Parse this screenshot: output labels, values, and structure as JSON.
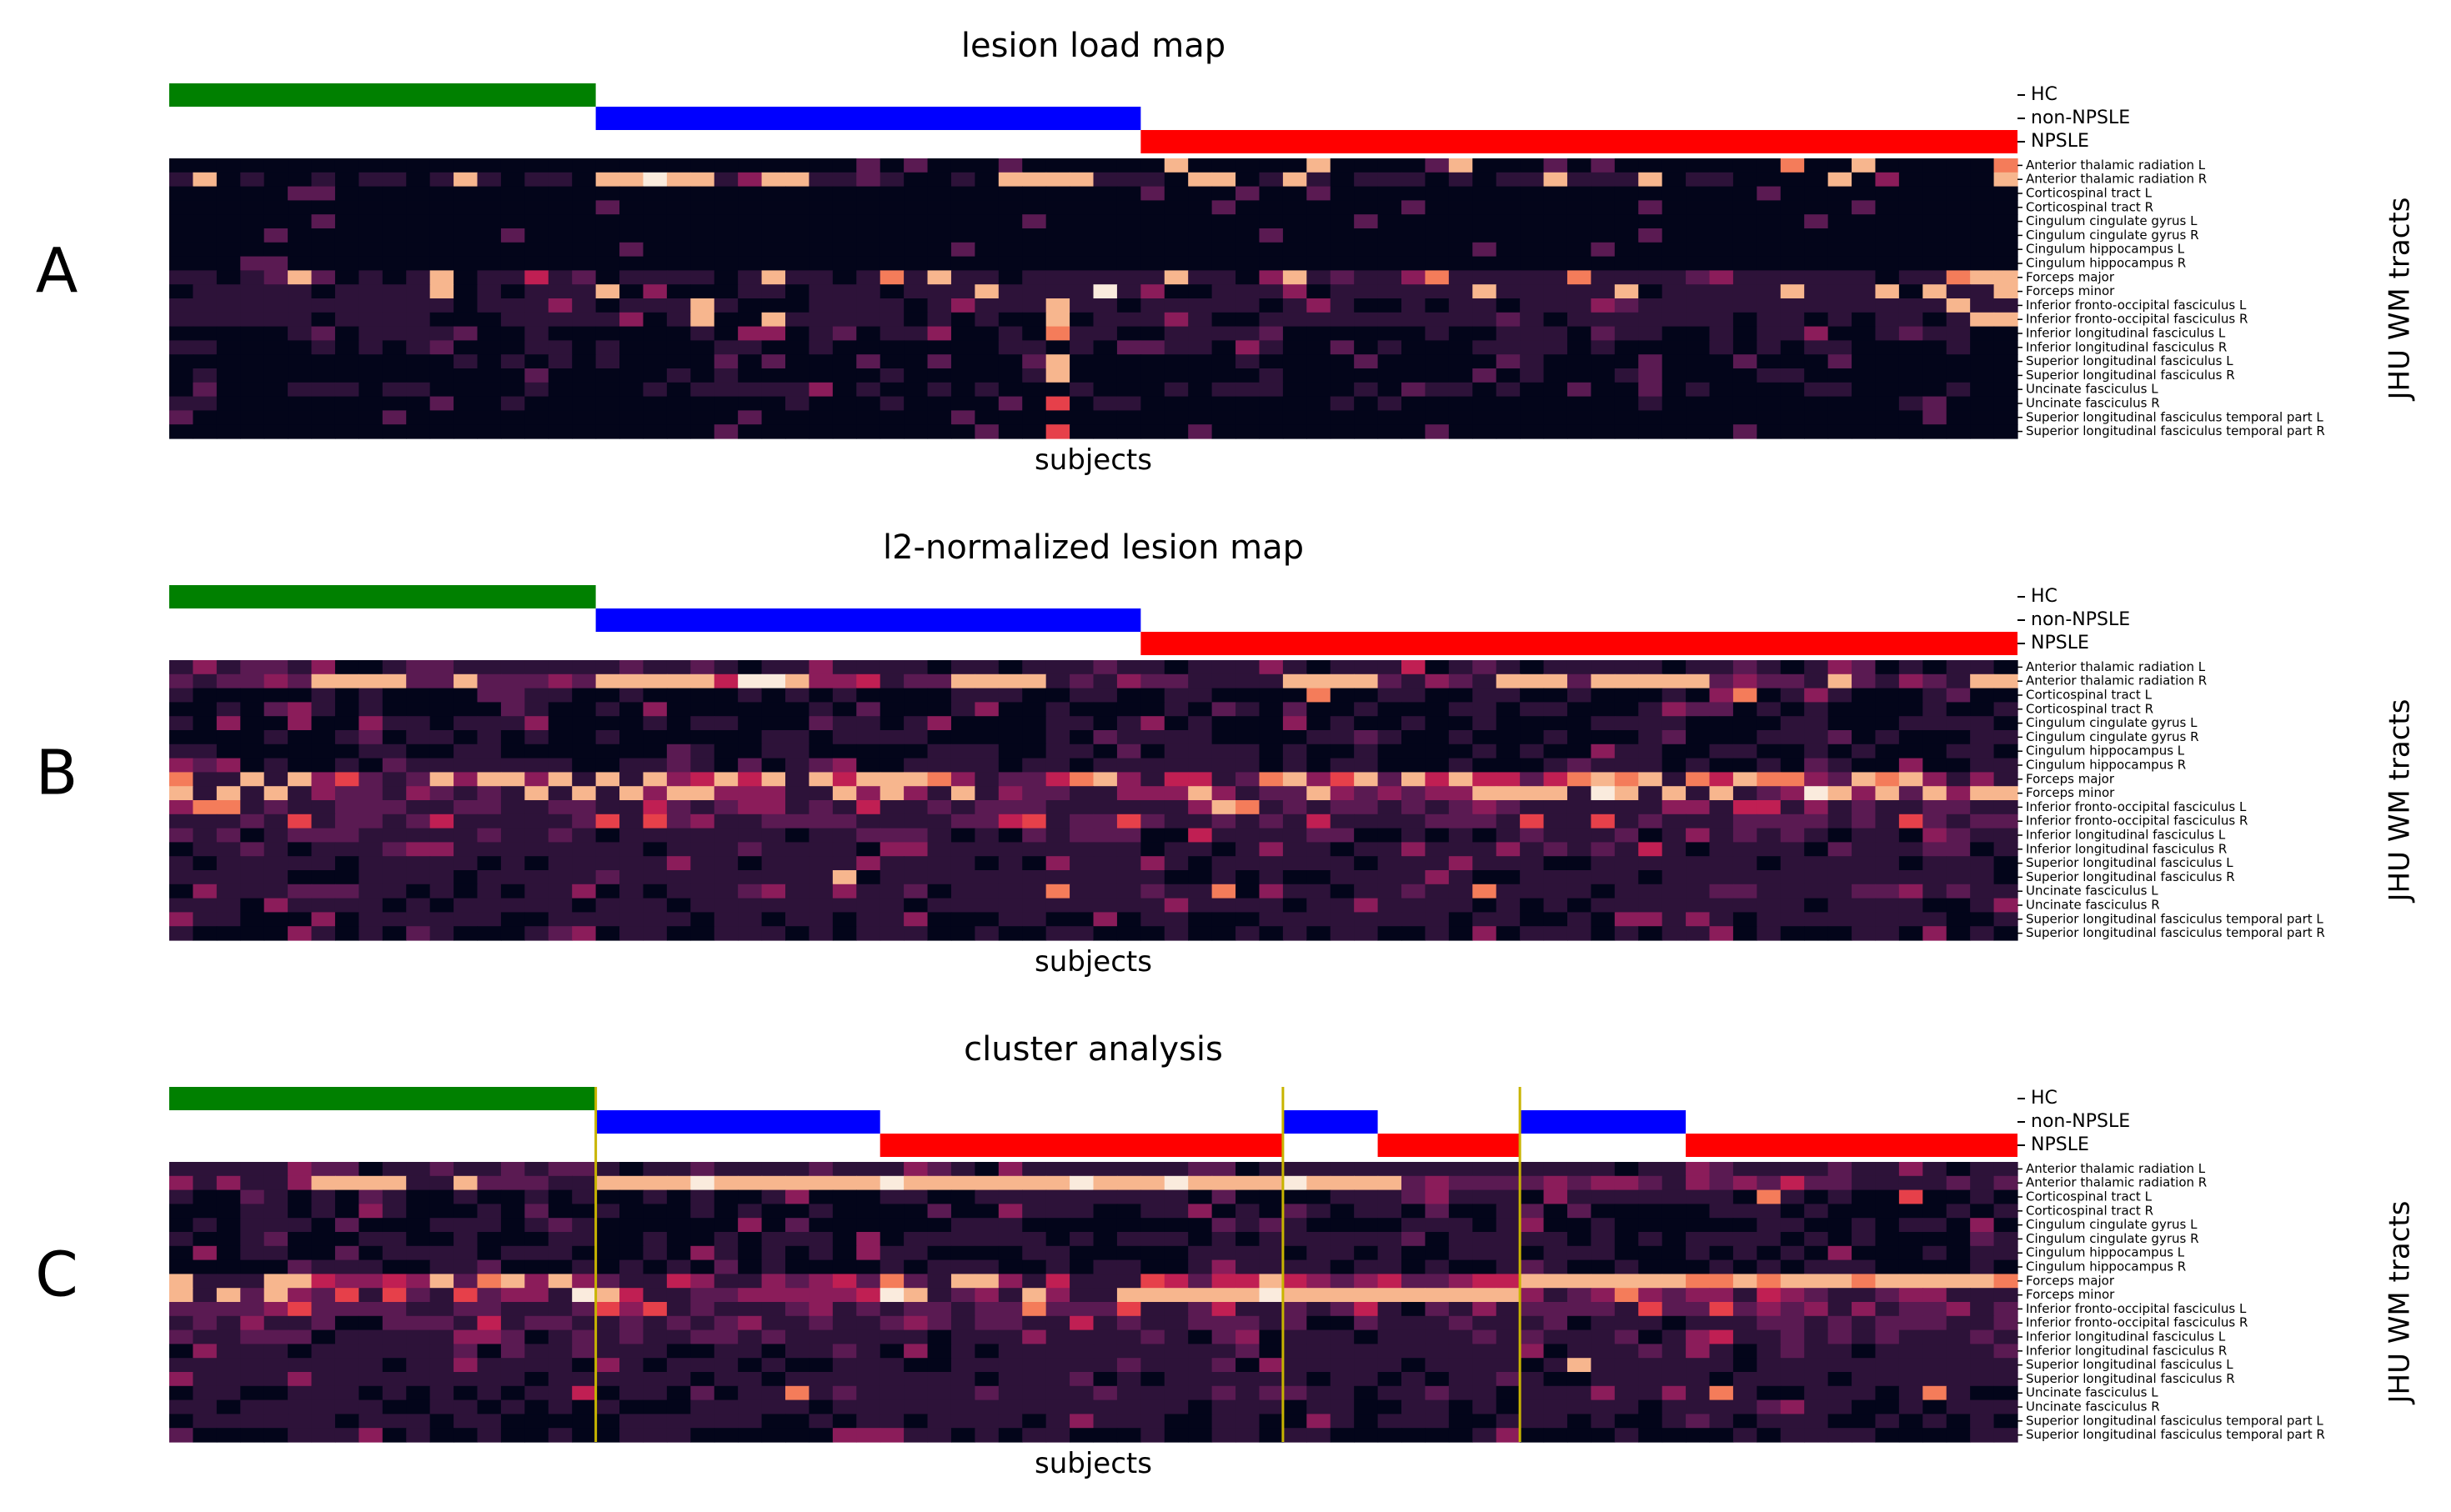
{
  "figure": {
    "y_axis_label": "JHU WM tracts",
    "x_axis_label": "subjects"
  },
  "groups": [
    {
      "label": "HC",
      "color": "#008000"
    },
    {
      "label": "non-NPSLE",
      "color": "#0000ff"
    },
    {
      "label": "NPSLE",
      "color": "#ff0000"
    }
  ],
  "tracts": [
    "Anterior thalamic radiation L",
    "Anterior thalamic radiation R",
    "Corticospinal tract L",
    "Corticospinal tract R",
    "Cingulum cingulate gyrus L",
    "Cingulum cingulate gyrus R",
    "Cingulum hippocampus L",
    "Cingulum hippocampus R",
    "Forceps major",
    "Forceps minor",
    "Inferior fronto-occipital fasciculus L",
    "Inferior fronto-occipital fasciculus R",
    "Inferior longitudinal fasciculus L",
    "Inferior longitudinal fasciculus R",
    "Superior longitudinal fasciculus L",
    "Superior longitudinal fasciculus R",
    "Uncinate fasciculus L",
    "Uncinate fasciculus R",
    "Superior longitudinal fasciculus temporal part L",
    "Superior longitudinal fasciculus temporal part R"
  ],
  "colormap": [
    "#03051a",
    "#2d1239",
    "#5a1a52",
    "#8b1c5a",
    "#c01f53",
    "#e6404a",
    "#f47c5a",
    "#f7b68e",
    "#faebdd"
  ],
  "chart_data": [
    {
      "type": "heatmap",
      "panel_letter": "A",
      "title": "lesion load map",
      "xlabel": "subjects",
      "ylabel": "JHU WM tracts",
      "n_subjects": 78,
      "group_segments": [
        {
          "group": "HC",
          "start": 0,
          "count": 18
        },
        {
          "group": "non-NPSLE",
          "start": 18,
          "count": 23
        },
        {
          "group": "NPSLE",
          "start": 41,
          "count": 37
        }
      ],
      "cluster_boundaries": [],
      "hot_cells": [
        {
          "row": 0,
          "cols": [
            42,
            48,
            54,
            68,
            71,
            77
          ],
          "value": 0.9
        },
        {
          "row": 1,
          "cols": [
            1,
            12,
            18,
            19,
            20,
            21,
            22,
            25,
            26,
            35,
            36,
            37,
            38,
            43,
            44,
            47,
            58,
            62,
            70,
            77
          ],
          "value": 0.95
        },
        {
          "row": 8,
          "cols": [
            5,
            11,
            25,
            30,
            32,
            42,
            47,
            53,
            59,
            75,
            76,
            77
          ],
          "value": 0.9
        },
        {
          "row": 9,
          "cols": [
            11,
            18,
            34,
            39,
            55,
            61,
            68,
            72,
            74,
            77
          ],
          "value": 0.95
        },
        {
          "row": 10,
          "cols": [
            22,
            37,
            75
          ],
          "value": 0.95
        },
        {
          "row": 11,
          "cols": [
            22,
            25,
            37,
            76,
            77
          ],
          "value": 0.9
        },
        {
          "row": 12,
          "cols": [
            37
          ],
          "value": 0.8
        },
        {
          "row": 14,
          "cols": [
            37
          ],
          "value": 0.95
        },
        {
          "row": 15,
          "cols": [
            37
          ],
          "value": 0.9
        },
        {
          "row": 17,
          "cols": [
            37
          ],
          "value": 0.7
        },
        {
          "row": 19,
          "cols": [
            37
          ],
          "value": 0.7
        }
      ],
      "row_base": [
        0.02,
        0.08,
        0.01,
        0.01,
        0.01,
        0.01,
        0.01,
        0.01,
        0.12,
        0.1,
        0.1,
        0.08,
        0.06,
        0.05,
        0.04,
        0.04,
        0.05,
        0.04,
        0.03,
        0.02
      ]
    },
    {
      "type": "heatmap",
      "panel_letter": "B",
      "title": "l2-normalized lesion map",
      "xlabel": "subjects",
      "ylabel": "JHU WM tracts",
      "n_subjects": 78,
      "group_segments": [
        {
          "group": "HC",
          "start": 0,
          "count": 18
        },
        {
          "group": "non-NPSLE",
          "start": 18,
          "count": 23
        },
        {
          "group": "NPSLE",
          "start": 41,
          "count": 37
        }
      ],
      "cluster_boundaries": [],
      "hot_cells": [
        {
          "row": 1,
          "cols": [
            6,
            7,
            8,
            9,
            12,
            18,
            19,
            20,
            21,
            22,
            24,
            25,
            26,
            33,
            34,
            35,
            36,
            47,
            48,
            49,
            50,
            56,
            57,
            58,
            61,
            60,
            62,
            63,
            64,
            70,
            76,
            77
          ],
          "value": 0.95
        },
        {
          "row": 2,
          "cols": [
            48,
            66
          ],
          "value": 0.75
        },
        {
          "row": 8,
          "cols": [
            0,
            3,
            5,
            11,
            13,
            14,
            16,
            18,
            20,
            23,
            25,
            27,
            29,
            30,
            31,
            32,
            38,
            39,
            46,
            47,
            50,
            52,
            54,
            59,
            60,
            61,
            62,
            64,
            66,
            67,
            68,
            71,
            73
          ],
          "value": 0.9
        },
        {
          "row": 9,
          "cols": [
            0,
            2,
            4,
            15,
            17,
            19,
            21,
            22,
            28,
            30,
            33,
            43,
            48,
            55,
            56,
            57,
            58,
            60,
            61,
            63,
            65,
            69,
            70,
            72,
            74,
            76,
            77
          ],
          "value": 0.95
        },
        {
          "row": 10,
          "cols": [
            1,
            2,
            44,
            45
          ],
          "value": 0.85
        },
        {
          "row": 11,
          "cols": [
            5,
            18,
            20,
            36,
            40,
            57,
            60,
            73
          ],
          "value": 0.7
        },
        {
          "row": 15,
          "cols": [
            28
          ],
          "value": 0.95
        },
        {
          "row": 16,
          "cols": [
            37,
            44,
            55
          ],
          "value": 0.8
        }
      ],
      "row_base": [
        0.12,
        0.2,
        0.06,
        0.05,
        0.06,
        0.06,
        0.06,
        0.06,
        0.3,
        0.25,
        0.2,
        0.18,
        0.14,
        0.12,
        0.1,
        0.1,
        0.12,
        0.1,
        0.08,
        0.06
      ]
    },
    {
      "type": "heatmap",
      "panel_letter": "C",
      "title": "cluster analysis",
      "xlabel": "subjects",
      "ylabel": "JHU WM tracts",
      "n_subjects": 78,
      "group_segments": [
        {
          "group": "HC",
          "start": 0,
          "count": 18
        },
        {
          "group": "non-NPSLE",
          "start": 18,
          "count": 12
        },
        {
          "group": "NPSLE",
          "start": 30,
          "count": 17
        },
        {
          "group": "non-NPSLE",
          "start": 47,
          "count": 4
        },
        {
          "group": "NPSLE",
          "start": 51,
          "count": 6
        },
        {
          "group": "non-NPSLE",
          "start": 57,
          "count": 7
        },
        {
          "group": "NPSLE",
          "start": 64,
          "count": 14
        }
      ],
      "cluster_boundaries": [
        18,
        47,
        57
      ],
      "hot_cells": [
        {
          "row": 1,
          "cols": [
            6,
            7,
            8,
            9,
            12,
            18,
            19,
            20,
            21,
            22,
            23,
            24,
            25,
            26,
            27,
            28,
            29,
            30,
            31,
            32,
            33,
            34,
            35,
            36,
            37,
            38,
            39,
            40,
            41,
            42,
            43,
            44,
            45,
            46,
            47,
            48,
            49,
            50,
            51
          ],
          "value": 0.95
        },
        {
          "row": 2,
          "cols": [
            67,
            73
          ],
          "value": 0.75
        },
        {
          "row": 8,
          "cols": [
            0,
            4,
            5,
            11,
            13,
            14,
            16,
            30,
            33,
            34,
            46,
            57,
            58,
            59,
            60,
            61,
            62,
            63,
            64,
            65,
            66,
            67,
            68,
            69,
            70,
            71,
            72,
            73,
            74,
            75,
            76,
            77
          ],
          "value": 0.9
        },
        {
          "row": 9,
          "cols": [
            0,
            2,
            4,
            17,
            18,
            30,
            31,
            36,
            40,
            41,
            42,
            43,
            44,
            45,
            46,
            47,
            48,
            49,
            50,
            51,
            52,
            53,
            54,
            55,
            56
          ],
          "value": 0.95
        },
        {
          "row": 10,
          "cols": [
            5,
            18,
            20,
            36,
            40,
            62,
            65
          ],
          "value": 0.7
        },
        {
          "row": 14,
          "cols": [
            59
          ],
          "value": 0.95
        },
        {
          "row": 16,
          "cols": [
            26,
            65,
            74
          ],
          "value": 0.8
        }
      ],
      "row_base": [
        0.12,
        0.22,
        0.06,
        0.05,
        0.06,
        0.06,
        0.06,
        0.06,
        0.3,
        0.28,
        0.2,
        0.18,
        0.14,
        0.12,
        0.1,
        0.1,
        0.12,
        0.1,
        0.08,
        0.06
      ]
    }
  ]
}
